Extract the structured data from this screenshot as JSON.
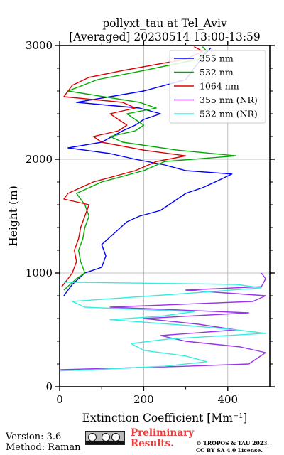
{
  "chart_data": {
    "type": "line",
    "title": "pollyxt_tau at Tel_Aviv",
    "subtitle": "[Averaged] 20230514 13:00-13:59",
    "xlabel": "Extinction Coefficient [Mm⁻¹]",
    "ylabel": "Height (m)",
    "xlim": [
      0,
      500
    ],
    "ylim": [
      0,
      3000
    ],
    "x_ticks": [
      "0",
      "200",
      "400"
    ],
    "y_ticks": [
      "0",
      "1000",
      "2000",
      "3000"
    ],
    "grid": true,
    "legend_position": "top-right",
    "series": [
      {
        "name": "355 nm",
        "color": "#0000ff",
        "points": [
          [
            10,
            800
          ],
          [
            30,
            900
          ],
          [
            60,
            1000
          ],
          [
            100,
            1050
          ],
          [
            110,
            1150
          ],
          [
            100,
            1250
          ],
          [
            130,
            1350
          ],
          [
            160,
            1450
          ],
          [
            190,
            1500
          ],
          [
            240,
            1550
          ],
          [
            260,
            1600
          ],
          [
            280,
            1650
          ],
          [
            300,
            1700
          ],
          [
            340,
            1750
          ],
          [
            370,
            1800
          ],
          [
            410,
            1870
          ],
          [
            300,
            1900
          ],
          [
            250,
            1950
          ],
          [
            180,
            2000
          ],
          [
            120,
            2050
          ],
          [
            20,
            2100
          ],
          [
            100,
            2150
          ],
          [
            150,
            2250
          ],
          [
            180,
            2300
          ],
          [
            200,
            2350
          ],
          [
            240,
            2400
          ],
          [
            190,
            2450
          ],
          [
            40,
            2500
          ],
          [
            200,
            2600
          ],
          [
            300,
            2700
          ],
          [
            320,
            2800
          ],
          [
            340,
            2900
          ],
          [
            360,
            2980
          ]
        ]
      },
      {
        "name": "532 nm",
        "color": "#00aa00",
        "points": [
          [
            10,
            850
          ],
          [
            40,
            950
          ],
          [
            60,
            1000
          ],
          [
            50,
            1100
          ],
          [
            45,
            1200
          ],
          [
            55,
            1300
          ],
          [
            60,
            1400
          ],
          [
            70,
            1500
          ],
          [
            60,
            1600
          ],
          [
            40,
            1700
          ],
          [
            100,
            1800
          ],
          [
            150,
            1850
          ],
          [
            200,
            1900
          ],
          [
            250,
            1980
          ],
          [
            420,
            2030
          ],
          [
            280,
            2080
          ],
          [
            150,
            2150
          ],
          [
            120,
            2200
          ],
          [
            180,
            2250
          ],
          [
            200,
            2300
          ],
          [
            160,
            2400
          ],
          [
            230,
            2450
          ],
          [
            190,
            2500
          ],
          [
            20,
            2600
          ],
          [
            90,
            2700
          ],
          [
            200,
            2780
          ],
          [
            330,
            2880
          ],
          [
            350,
            2950
          ],
          [
            340,
            2990
          ]
        ]
      },
      {
        "name": "1064 nm",
        "color": "#dd0000",
        "points": [
          [
            5,
            880
          ],
          [
            20,
            950
          ],
          [
            30,
            1000
          ],
          [
            40,
            1100
          ],
          [
            35,
            1200
          ],
          [
            45,
            1300
          ],
          [
            50,
            1400
          ],
          [
            60,
            1500
          ],
          [
            70,
            1600
          ],
          [
            10,
            1650
          ],
          [
            20,
            1700
          ],
          [
            80,
            1800
          ],
          [
            130,
            1850
          ],
          [
            180,
            1900
          ],
          [
            230,
            1980
          ],
          [
            300,
            2030
          ],
          [
            200,
            2080
          ],
          [
            100,
            2150
          ],
          [
            80,
            2200
          ],
          [
            140,
            2250
          ],
          [
            160,
            2300
          ],
          [
            120,
            2400
          ],
          [
            180,
            2450
          ],
          [
            150,
            2500
          ],
          [
            10,
            2550
          ],
          [
            30,
            2650
          ],
          [
            70,
            2720
          ],
          [
            150,
            2780
          ],
          [
            300,
            2880
          ],
          [
            340,
            2950
          ],
          [
            320,
            2990
          ]
        ]
      },
      {
        "name": "355 nm (NR)",
        "color": "#9933ee",
        "points": [
          [
            2,
            150
          ],
          [
            100,
            160
          ],
          [
            300,
            180
          ],
          [
            450,
            200
          ],
          [
            490,
            300
          ],
          [
            430,
            350
          ],
          [
            300,
            400
          ],
          [
            240,
            450
          ],
          [
            420,
            500
          ],
          [
            330,
            550
          ],
          [
            200,
            600
          ],
          [
            450,
            650
          ],
          [
            120,
            700
          ],
          [
            460,
            750
          ],
          [
            490,
            800
          ],
          [
            300,
            850
          ],
          [
            480,
            880
          ],
          [
            490,
            950
          ],
          [
            480,
            1000
          ]
        ]
      },
      {
        "name": "532 nm (NR)",
        "color": "#33eedd",
        "points": [
          [
            2,
            140
          ],
          [
            80,
            150
          ],
          [
            250,
            180
          ],
          [
            350,
            220
          ],
          [
            300,
            270
          ],
          [
            200,
            320
          ],
          [
            170,
            380
          ],
          [
            260,
            420
          ],
          [
            490,
            470
          ],
          [
            420,
            500
          ],
          [
            300,
            540
          ],
          [
            120,
            590
          ],
          [
            240,
            620
          ],
          [
            320,
            660
          ],
          [
            60,
            700
          ],
          [
            30,
            750
          ],
          [
            300,
            820
          ],
          [
            480,
            870
          ],
          [
            420,
            900
          ],
          [
            10,
            920
          ]
        ]
      }
    ]
  },
  "footer": {
    "version": "Version: 3.6",
    "method": "Method: Raman",
    "preliminary_line1": "Preliminary",
    "preliminary_line2": "Results.",
    "copyright_line1": "© TROPOS & TAU 2023.",
    "copyright_line2": "CC BY SA 4.0 License."
  }
}
